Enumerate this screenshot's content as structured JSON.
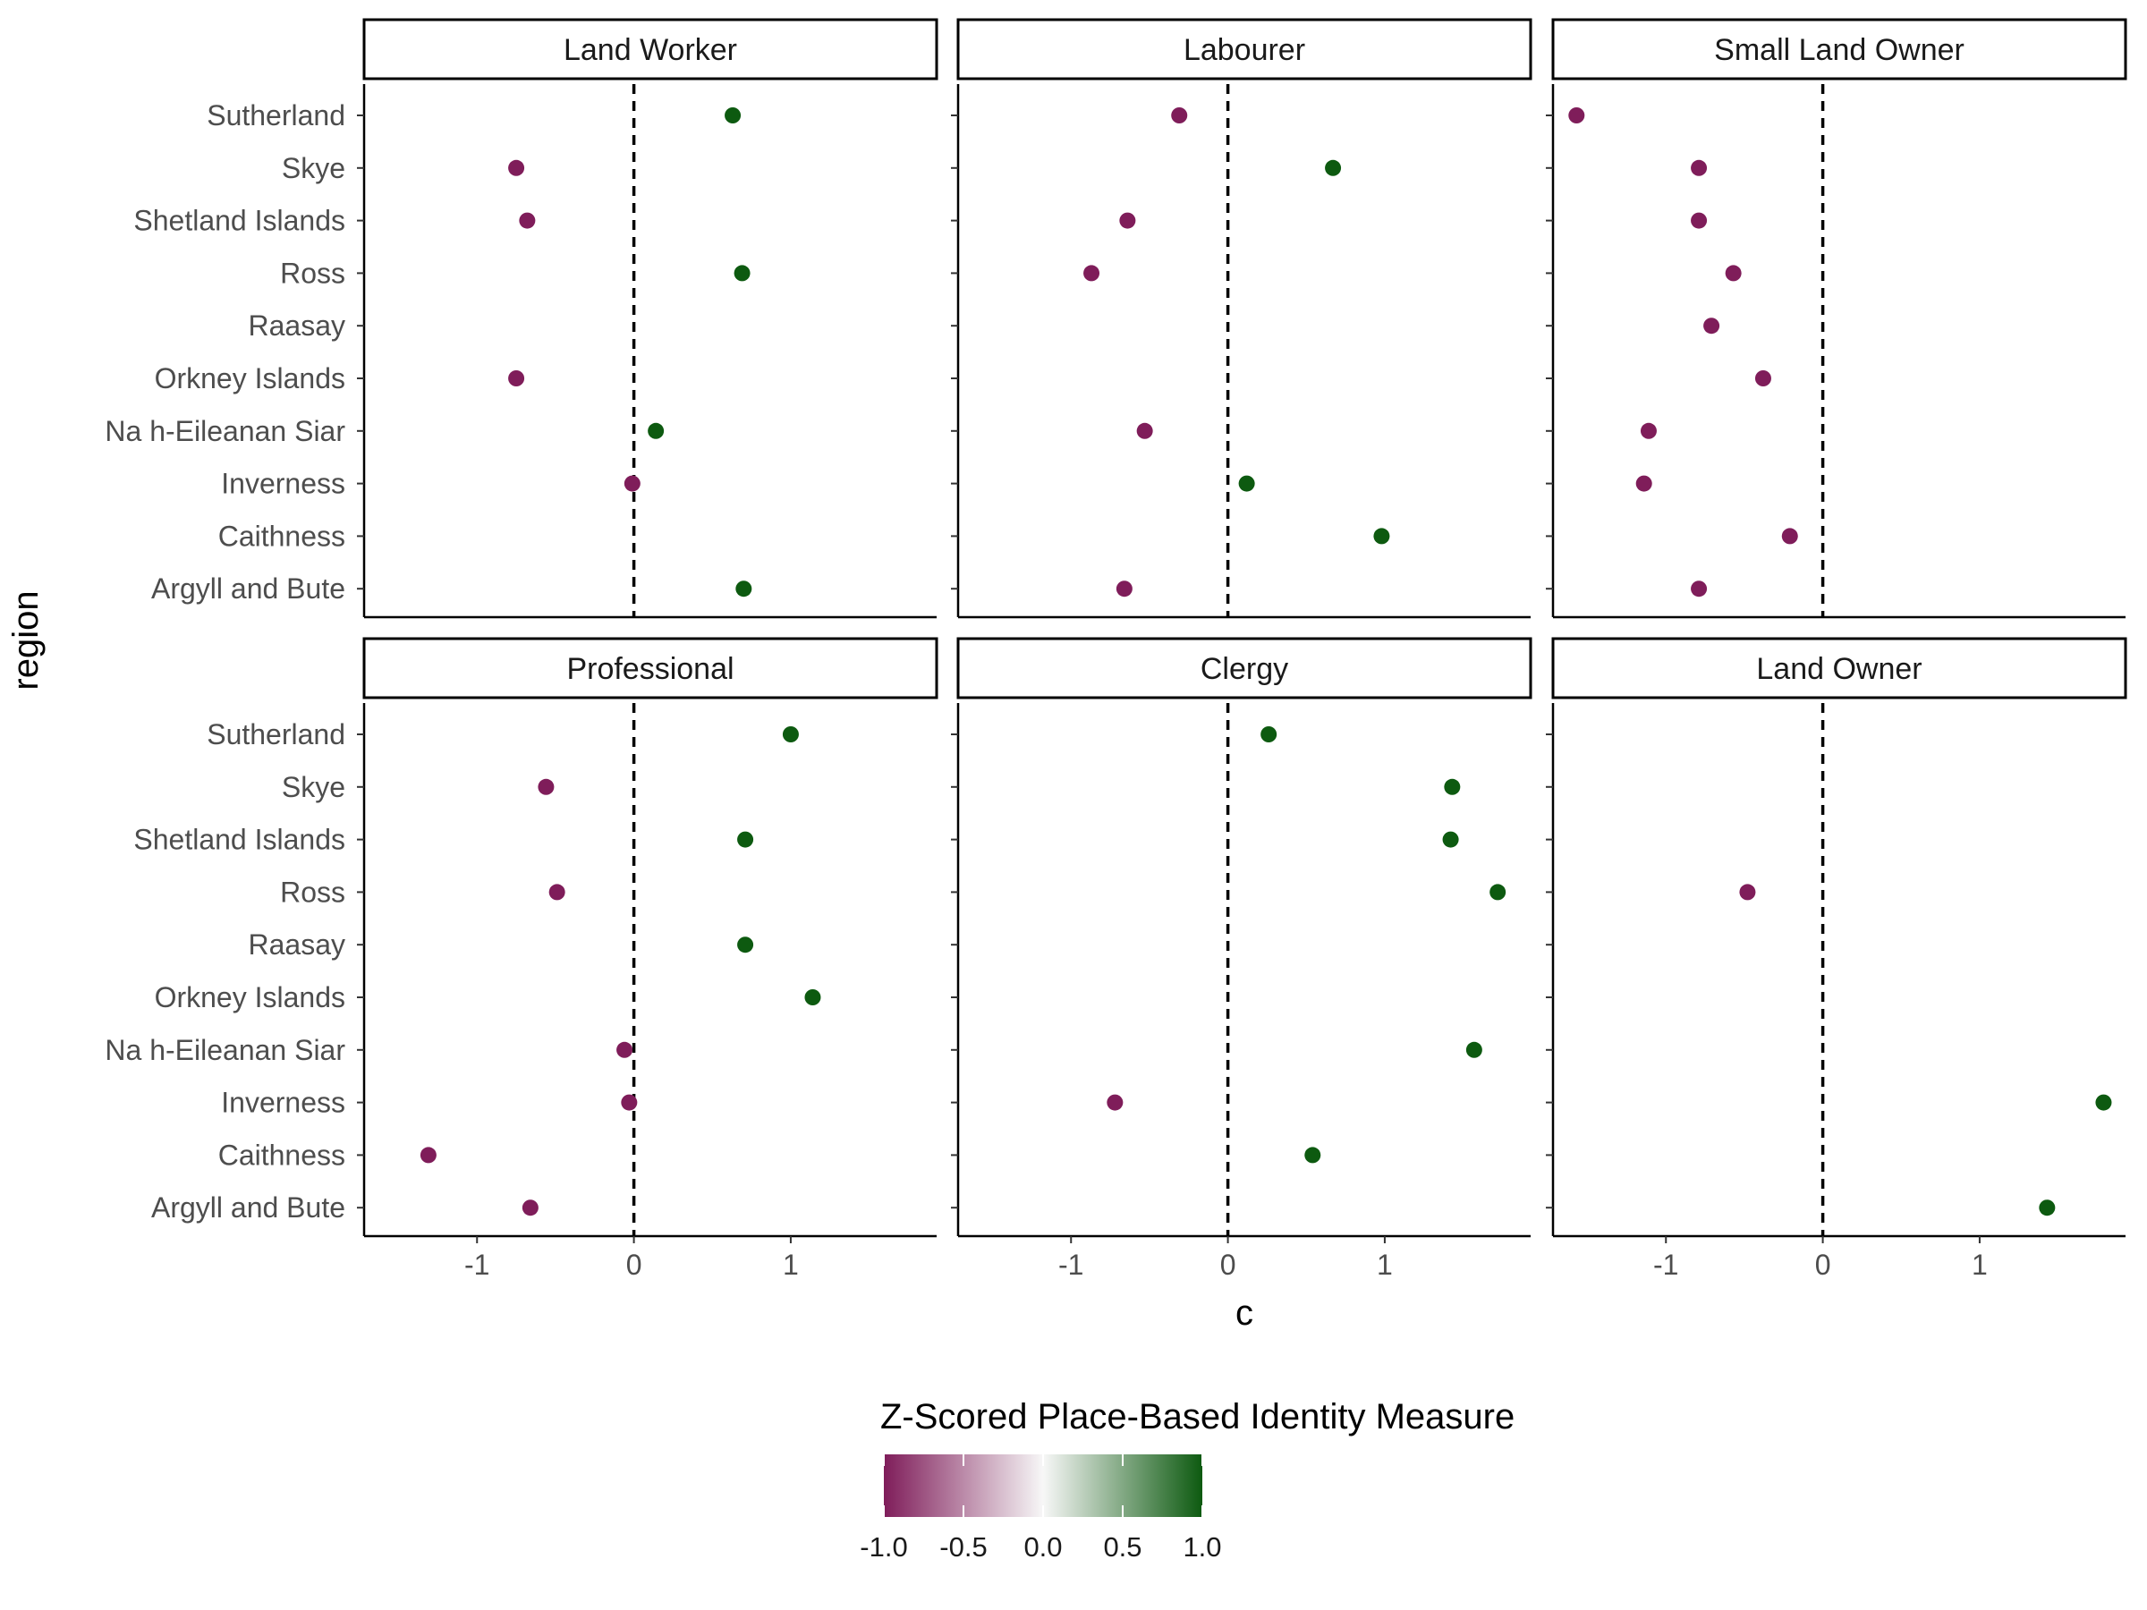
{
  "chart_data": {
    "type": "scatter",
    "layout": "faceted dot plot, 2 rows x 3 columns",
    "xlabel": "c",
    "ylabel": "region",
    "xlim": [
      -1.72,
      1.93
    ],
    "x_ticks": [
      -1,
      0,
      1
    ],
    "reference_line": {
      "x": 0,
      "style": "dashed"
    },
    "regions": [
      "Argyll and Bute",
      "Caithness",
      "Inverness",
      "Na h-Eileanan Siar",
      "Orkney Islands",
      "Raasay",
      "Ross",
      "Shetland Islands",
      "Skye",
      "Sutherland"
    ],
    "facets": [
      {
        "title": "Land Worker",
        "points": [
          {
            "region": "Sutherland",
            "x": 0.63
          },
          {
            "region": "Skye",
            "x": -0.75
          },
          {
            "region": "Shetland Islands",
            "x": -0.68
          },
          {
            "region": "Ross",
            "x": 0.69
          },
          {
            "region": "Orkney Islands",
            "x": -0.75
          },
          {
            "region": "Na h-Eileanan Siar",
            "x": 0.14
          },
          {
            "region": "Inverness",
            "x": -0.01
          },
          {
            "region": "Argyll and Bute",
            "x": 0.7
          }
        ]
      },
      {
        "title": "Labourer",
        "points": [
          {
            "region": "Sutherland",
            "x": -0.31
          },
          {
            "region": "Skye",
            "x": 0.67
          },
          {
            "region": "Shetland Islands",
            "x": -0.64
          },
          {
            "region": "Ross",
            "x": -0.87
          },
          {
            "region": "Na h-Eileanan Siar",
            "x": -0.53
          },
          {
            "region": "Inverness",
            "x": 0.12
          },
          {
            "region": "Caithness",
            "x": 0.98
          },
          {
            "region": "Argyll and Bute",
            "x": -0.66
          }
        ]
      },
      {
        "title": "Small Land Owner",
        "points": [
          {
            "region": "Sutherland",
            "x": -1.57
          },
          {
            "region": "Skye",
            "x": -0.79
          },
          {
            "region": "Shetland Islands",
            "x": -0.79
          },
          {
            "region": "Ross",
            "x": -0.57
          },
          {
            "region": "Raasay",
            "x": -0.71
          },
          {
            "region": "Orkney Islands",
            "x": -0.38
          },
          {
            "region": "Na h-Eileanan Siar",
            "x": -1.11
          },
          {
            "region": "Inverness",
            "x": -1.14
          },
          {
            "region": "Caithness",
            "x": -0.21
          },
          {
            "region": "Argyll and Bute",
            "x": -0.79
          }
        ]
      },
      {
        "title": "Professional",
        "points": [
          {
            "region": "Sutherland",
            "x": 1.0
          },
          {
            "region": "Skye",
            "x": -0.56
          },
          {
            "region": "Shetland Islands",
            "x": 0.71
          },
          {
            "region": "Ross",
            "x": -0.49
          },
          {
            "region": "Raasay",
            "x": 0.71
          },
          {
            "region": "Orkney Islands",
            "x": 1.14
          },
          {
            "region": "Na h-Eileanan Siar",
            "x": -0.06
          },
          {
            "region": "Inverness",
            "x": -0.03
          },
          {
            "region": "Caithness",
            "x": -1.31
          },
          {
            "region": "Argyll and Bute",
            "x": -0.66
          }
        ]
      },
      {
        "title": "Clergy",
        "points": [
          {
            "region": "Sutherland",
            "x": 0.26
          },
          {
            "region": "Skye",
            "x": 1.43
          },
          {
            "region": "Shetland Islands",
            "x": 1.42
          },
          {
            "region": "Ross",
            "x": 1.72
          },
          {
            "region": "Na h-Eileanan Siar",
            "x": 1.57
          },
          {
            "region": "Inverness",
            "x": -0.72
          },
          {
            "region": "Caithness",
            "x": 0.54
          }
        ]
      },
      {
        "title": "Land Owner",
        "points": [
          {
            "region": "Ross",
            "x": -0.48
          },
          {
            "region": "Inverness",
            "x": 1.79
          },
          {
            "region": "Argyll and Bute",
            "x": 1.43
          }
        ]
      }
    ],
    "colorbar": {
      "title": "Z-Scored Place-Based Identity Measure",
      "range": [
        -1.0,
        1.0
      ],
      "ticks": [
        "-1.0",
        "-0.5",
        "0.0",
        "0.5",
        "1.0"
      ],
      "low_color": "#7f1d5a",
      "mid_color": "#f7f7f7",
      "high_color": "#0d5a10"
    },
    "point_color_rule": "negative x = low_color, positive x = high_color"
  }
}
